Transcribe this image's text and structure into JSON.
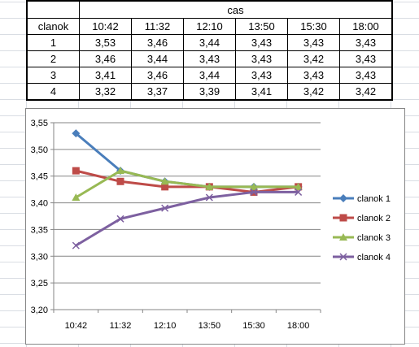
{
  "table": {
    "header_group": "cas",
    "row_header": "clanok",
    "times": [
      "10:42",
      "11:32",
      "12:10",
      "13:50",
      "15:30",
      "18:00"
    ],
    "rows": [
      {
        "label": "1",
        "values": [
          "3,53",
          "3,46",
          "3,44",
          "3,43",
          "3,43",
          "3,43"
        ]
      },
      {
        "label": "2",
        "values": [
          "3,46",
          "3,44",
          "3,43",
          "3,43",
          "3,42",
          "3,43"
        ]
      },
      {
        "label": "3",
        "values": [
          "3,41",
          "3,46",
          "3,44",
          "3,43",
          "3,43",
          "3,43"
        ]
      },
      {
        "label": "4",
        "values": [
          "3,32",
          "3,37",
          "3,39",
          "3,41",
          "3,42",
          "3,42"
        ]
      }
    ]
  },
  "chart_data": {
    "type": "line",
    "categories": [
      "10:42",
      "11:32",
      "12:10",
      "13:50",
      "15:30",
      "18:00"
    ],
    "ylim": [
      3.2,
      3.55
    ],
    "ytick_labels": [
      "3,20",
      "3,25",
      "3,30",
      "3,35",
      "3,40",
      "3,45",
      "3,50",
      "3,55"
    ],
    "yticks": [
      3.2,
      3.25,
      3.3,
      3.35,
      3.4,
      3.45,
      3.5,
      3.55
    ],
    "grid": true,
    "legend_placement": "right",
    "series": [
      {
        "name": "clanok 1",
        "color": "#4a7ebb",
        "marker": "diamond",
        "values": [
          3.53,
          3.46,
          3.44,
          3.43,
          3.43,
          3.43
        ]
      },
      {
        "name": "clanok 2",
        "color": "#be4b48",
        "marker": "square",
        "values": [
          3.46,
          3.44,
          3.43,
          3.43,
          3.42,
          3.43
        ]
      },
      {
        "name": "clanok 3",
        "color": "#98b954",
        "marker": "triangle",
        "values": [
          3.41,
          3.46,
          3.44,
          3.43,
          3.43,
          3.43
        ]
      },
      {
        "name": "clanok 4",
        "color": "#7d60a0",
        "marker": "x",
        "values": [
          3.32,
          3.37,
          3.39,
          3.41,
          3.42,
          3.42
        ]
      }
    ]
  }
}
